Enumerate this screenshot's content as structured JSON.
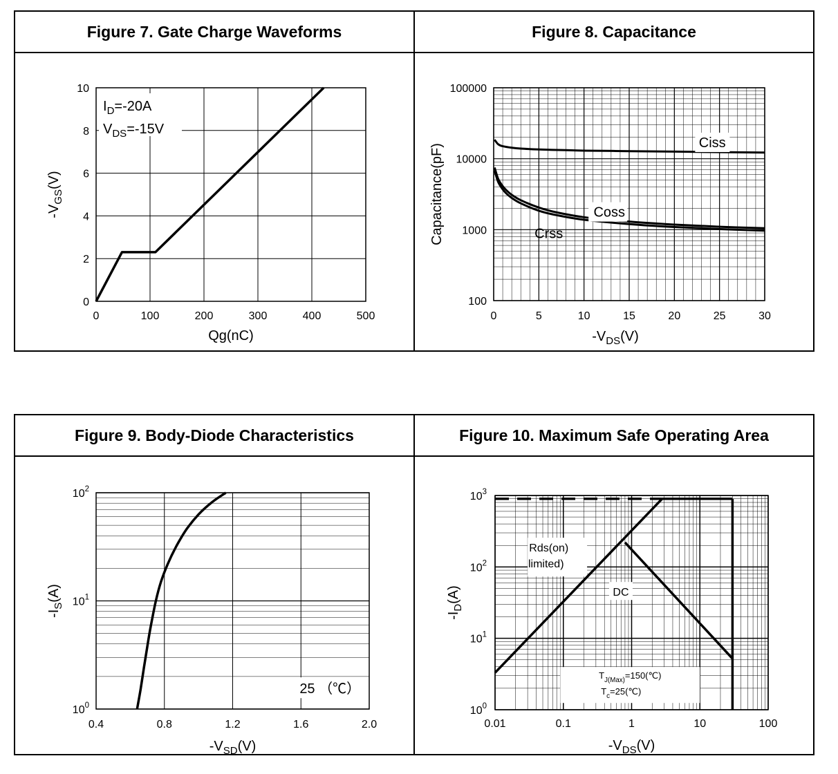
{
  "figures": {
    "fig7": {
      "title": "Figure 7. Gate Charge Waveforms"
    },
    "fig8": {
      "title": "Figure 8. Capacitance"
    },
    "fig9": {
      "title": "Figure 9. Body-Diode Characteristics"
    },
    "fig10": {
      "title": "Figure 10. Maximum Safe Operating Area"
    }
  },
  "chart_data": [
    {
      "id": "fig7",
      "type": "line",
      "title": "Figure 7. Gate Charge Waveforms",
      "xlabel": "Qg(nC)",
      "ylabel": "-VGS(V)",
      "xlim": [
        0,
        500
      ],
      "ylim": [
        0,
        10
      ],
      "xticks": [
        0,
        100,
        200,
        300,
        400,
        500
      ],
      "yticks": [
        0,
        2,
        4,
        6,
        8,
        10
      ],
      "grid": true,
      "annotations": {
        "id": "ID=-20A",
        "vds": "VDS=-15V"
      },
      "series": [
        {
          "name": "-VGS",
          "x": [
            0,
            48,
            110,
            422
          ],
          "y": [
            0,
            2.3,
            2.3,
            10
          ]
        }
      ]
    },
    {
      "id": "fig8",
      "type": "line",
      "title": "Figure 8. Capacitance",
      "xlabel": "-VDS(V)",
      "ylabel": "Capacitance(pF)",
      "xlim": [
        0,
        30
      ],
      "ylim": [
        100,
        100000
      ],
      "yscale": "log",
      "xticks": [
        0,
        5,
        10,
        15,
        20,
        25,
        30
      ],
      "yticks": [
        100,
        1000,
        10000,
        100000
      ],
      "ytick_labels": [
        "100",
        "1000",
        "10000",
        "100000"
      ],
      "grid": true,
      "series": [
        {
          "name": "Ciss",
          "x": [
            0.1,
            0.5,
            1,
            2,
            3,
            5,
            8,
            10,
            15,
            20,
            25,
            30
          ],
          "y": [
            18500,
            16000,
            15000,
            14300,
            13900,
            13500,
            13200,
            13000,
            12800,
            12600,
            12400,
            12200
          ]
        },
        {
          "name": "Coss",
          "x": [
            0.1,
            0.5,
            1,
            1.5,
            2,
            3,
            5,
            7,
            10,
            15,
            20,
            25,
            30
          ],
          "y": [
            7500,
            5200,
            4100,
            3500,
            3100,
            2600,
            2050,
            1750,
            1500,
            1300,
            1180,
            1100,
            1050
          ]
        },
        {
          "name": "Crss",
          "x": [
            0.1,
            0.5,
            1,
            1.5,
            2,
            3,
            5,
            7,
            10,
            15,
            20,
            25,
            30
          ],
          "y": [
            6800,
            4700,
            3700,
            3150,
            2800,
            2350,
            1850,
            1600,
            1380,
            1200,
            1090,
            1020,
            970
          ]
        }
      ]
    },
    {
      "id": "fig9",
      "type": "line",
      "title": "Figure 9. Body-Diode Characteristics",
      "xlabel": "-VSD(V)",
      "ylabel": "-IS(A)",
      "xlim": [
        0.4,
        2.0
      ],
      "ylim": [
        1,
        100
      ],
      "yscale": "log",
      "xticks": [
        0.4,
        0.8,
        1.2,
        1.6,
        2.0
      ],
      "xtick_labels": [
        "0.4",
        "0.8",
        "1.2",
        "1.6",
        "2.0"
      ],
      "yticks": [
        1,
        10,
        100
      ],
      "ytick_labels": [
        {
          "base": "10",
          "exp": "0"
        },
        {
          "base": "10",
          "exp": "1"
        },
        {
          "base": "10",
          "exp": "2"
        }
      ],
      "grid": true,
      "annotation": "25 （℃）",
      "series": [
        {
          "name": "25℃",
          "x": [
            0.64,
            0.66,
            0.68,
            0.7,
            0.72,
            0.75,
            0.78,
            0.82,
            0.87,
            0.93,
            1.0,
            1.08,
            1.16
          ],
          "y": [
            1.0,
            1.5,
            2.4,
            3.8,
            5.8,
            10,
            15,
            22,
            32,
            46,
            63,
            82,
            100
          ]
        }
      ]
    },
    {
      "id": "fig10",
      "type": "line",
      "title": "Figure 10. Maximum Safe Operating Area",
      "xlabel": "-VDS(V)",
      "ylabel": "-ID(A)",
      "xscale": "log",
      "yscale": "log",
      "xlim": [
        0.01,
        100
      ],
      "ylim": [
        1,
        1000
      ],
      "xticks": [
        0.01,
        0.1,
        1,
        10,
        100
      ],
      "xtick_labels": [
        "0.01",
        "0.1",
        "1",
        "10",
        "100"
      ],
      "yticks": [
        1,
        10,
        100,
        1000
      ],
      "ytick_labels": [
        {
          "base": "10",
          "exp": "0"
        },
        {
          "base": "10",
          "exp": "1"
        },
        {
          "base": "10",
          "exp": "2"
        },
        {
          "base": "10",
          "exp": "3"
        }
      ],
      "grid": true,
      "labels": {
        "rds": [
          "Rds(on)",
          "limited)"
        ],
        "dc": "DC"
      },
      "conditions": {
        "tj": "TJ(Max)=150(℃)",
        "tc": "Tc=25(℃)"
      },
      "series": [
        {
          "name": "Rds(on) limit",
          "x": [
            0.01,
            2.8
          ],
          "y": [
            3.3,
            900
          ]
        },
        {
          "name": "Current limit",
          "x": [
            2.8,
            30
          ],
          "y": [
            900,
            900
          ]
        },
        {
          "name": "Current limit (dashed)",
          "style": "dashed",
          "x": [
            0.01,
            2.8
          ],
          "y": [
            900,
            900
          ]
        },
        {
          "name": "DC",
          "x": [
            0.8,
            30
          ],
          "y": [
            220,
            5.2
          ]
        },
        {
          "name": "VDS max",
          "x": [
            30,
            30
          ],
          "y": [
            900,
            1
          ]
        }
      ]
    }
  ]
}
